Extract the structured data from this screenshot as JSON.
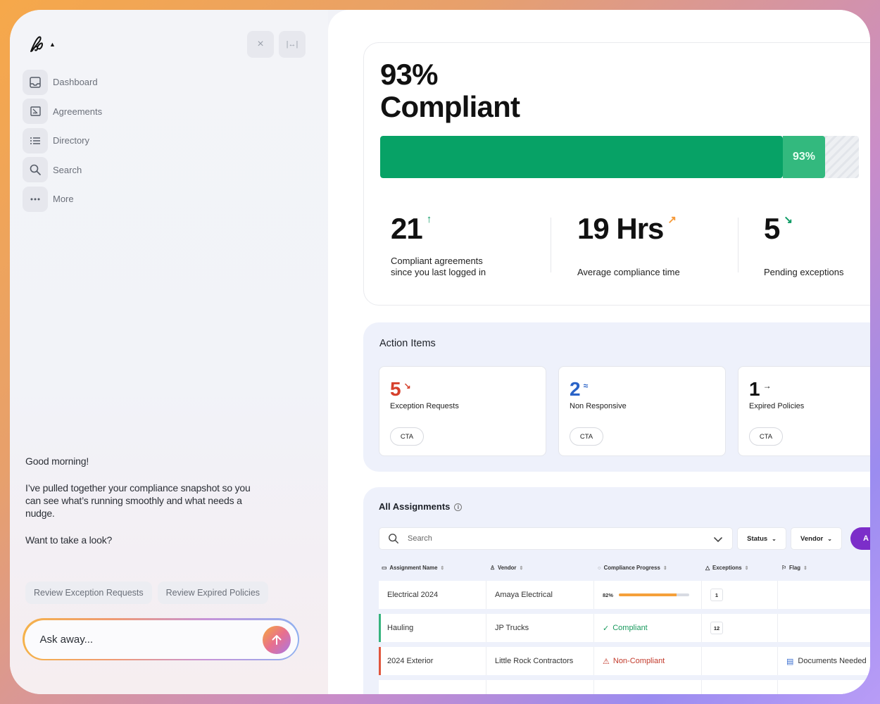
{
  "sidebar": {
    "items": [
      {
        "label": "Dashboard",
        "icon": "inbox-icon"
      },
      {
        "label": "Agreements",
        "icon": "agreement-icon"
      },
      {
        "label": "Directory",
        "icon": "list-icon"
      },
      {
        "label": "Search",
        "icon": "search-icon"
      },
      {
        "label": "More",
        "icon": "more-icon"
      }
    ],
    "close_icon": "×",
    "collapse_icon": "|↔|"
  },
  "assistant": {
    "greeting": "Good morning!",
    "message": "I’ve pulled together your compliance snapshot so you can see what’s running smoothly and what needs a nudge.",
    "question": "Want to take a look?",
    "chips": [
      "Review Exception Requests",
      "Review Expired Policies"
    ],
    "input_placeholder": "Ask away..."
  },
  "summary": {
    "title_line1": "93%",
    "title_line2": "Compliant",
    "progress_percent": 93,
    "progress_label": "93%",
    "stats": [
      {
        "value": "21",
        "label_line1": "Compliant agreements",
        "label_line2": "since you last logged in",
        "trend": "up",
        "trend_color": "#0b9a63"
      },
      {
        "value": "19 Hrs",
        "label_line1": "",
        "label_line2": "Average compliance time",
        "trend": "up-right",
        "trend_color": "#f59a3a"
      },
      {
        "value": "5",
        "label_line1": "",
        "label_line2": "Pending exceptions",
        "trend": "down-right",
        "trend_color": "#0b9a63"
      }
    ]
  },
  "action_items": {
    "title": "Action Items",
    "items": [
      {
        "value": "5",
        "label": "Exception Requests",
        "cta": "CTA",
        "color": "#d6402c",
        "trend_color": "#d6402c"
      },
      {
        "value": "2",
        "label": "Non Responsive",
        "cta": "CTA",
        "color": "#2a63c7",
        "trend_color": "#2a63c7"
      },
      {
        "value": "1",
        "label": "Expired Policies",
        "cta": "CTA",
        "color": "#111111",
        "trend_color": "#111111"
      }
    ]
  },
  "assignments": {
    "title": "All Assignments",
    "search_placeholder": "Search",
    "status_filter": "Status",
    "vendor_filter": "Vendor",
    "action_button": "A",
    "columns": [
      "Assignment Name",
      "Vendor",
      "Compliance Progress",
      "Exceptions",
      "Flag"
    ],
    "rows": [
      {
        "name": "Electrical 2024",
        "vendor": "Amaya Electrical",
        "progress_label": "82%",
        "progress": 82,
        "exceptions": "1",
        "flag": "",
        "accent": ""
      },
      {
        "name": "Hauling",
        "vendor": "JP Trucks",
        "status": "Compliant",
        "exceptions": "12",
        "flag": "",
        "accent": "#36b37e"
      },
      {
        "name": "2024 Exterior",
        "vendor": "Little Rock Contractors",
        "status": "Non-Compliant",
        "exceptions": "",
        "flag": "Documents Needed",
        "accent": "#e0563d"
      }
    ]
  }
}
